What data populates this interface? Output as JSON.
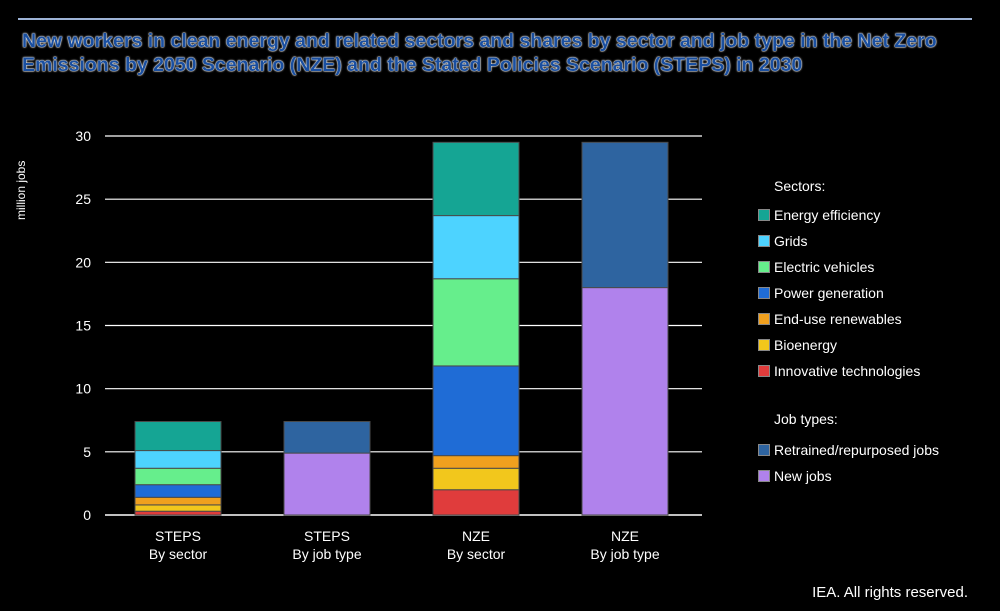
{
  "chart_data": {
    "type": "bar",
    "stacked": true,
    "title": "New workers in clean energy and related sectors and shares by sector and job type in the Net Zero Emissions by 2050 Scenario (NZE) and the Stated Policies Scenario (STEPS) in 2030",
    "ylabel": "million jobs",
    "ylim": [
      0,
      30
    ],
    "yticks": [
      0,
      5,
      10,
      15,
      20,
      25,
      30
    ],
    "grid": true,
    "legend_placement": "right",
    "categories": [
      {
        "line1": "STEPS",
        "line2": "By sector"
      },
      {
        "line1": "STEPS",
        "line2": "By job type"
      },
      {
        "line1": "NZE",
        "line2": "By sector"
      },
      {
        "line1": "NZE",
        "line2": "By job type"
      }
    ],
    "legend_heading_sectors": "Sectors:",
    "legend_heading_jobtypes": "Job types:",
    "series": [
      {
        "name": "Innovative technologies",
        "group": "sector",
        "color": "#e03c3c",
        "values": [
          0.3,
          0,
          2.0,
          0
        ]
      },
      {
        "name": "Bioenergy",
        "group": "sector",
        "color": "#f2c71c",
        "values": [
          0.5,
          0,
          1.7,
          0
        ]
      },
      {
        "name": "End-use renewables",
        "group": "sector",
        "color": "#f0a01e",
        "values": [
          0.6,
          0,
          1.0,
          0
        ]
      },
      {
        "name": "Power generation",
        "group": "sector",
        "color": "#1f6cd6",
        "values": [
          1.0,
          0,
          7.1,
          0
        ]
      },
      {
        "name": "Electric vehicles",
        "group": "sector",
        "color": "#66ee8c",
        "values": [
          1.3,
          0,
          6.9,
          0
        ]
      },
      {
        "name": "Grids",
        "group": "sector",
        "color": "#4dd3ff",
        "values": [
          1.4,
          0,
          5.0,
          0
        ]
      },
      {
        "name": "Energy efficiency",
        "group": "sector",
        "color": "#15a594",
        "values": [
          2.3,
          0,
          5.8,
          0
        ]
      },
      {
        "name": "New jobs",
        "group": "jobtype",
        "color": "#b082ec",
        "values": [
          0,
          4.9,
          0,
          18.0
        ]
      },
      {
        "name": "Retrained/repurposed jobs",
        "group": "jobtype",
        "color": "#2e64a0",
        "values": [
          0,
          2.5,
          0,
          11.5
        ]
      }
    ]
  },
  "legend_order_sectors": [
    "Energy efficiency",
    "Grids",
    "Electric vehicles",
    "Power generation",
    "End-use renewables",
    "Bioenergy",
    "Innovative technologies"
  ],
  "legend_order_jobtypes": [
    "Retrained/repurposed jobs",
    "New jobs"
  ],
  "footer": "IEA. All rights reserved."
}
